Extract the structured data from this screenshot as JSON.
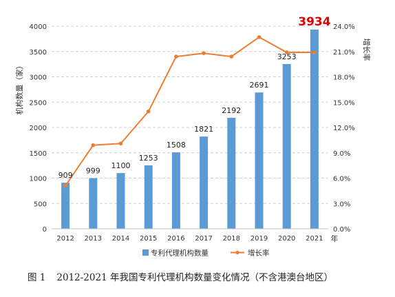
{
  "caption": {
    "figure_number": "图 1",
    "text": "2012-2021 年我国专利代理机构数量变化情况（不含港澳台地区）"
  },
  "chart_data": {
    "type": "bar",
    "categories": [
      "2012",
      "2013",
      "2014",
      "2015",
      "2016",
      "2017",
      "2018",
      "2019",
      "2020",
      "2021"
    ],
    "x_unit": "年",
    "series": [
      {
        "name": "专利代理机构数量",
        "type": "bar",
        "axis": "left",
        "color": "#5b9bd5",
        "values": [
          909,
          999,
          1100,
          1253,
          1508,
          1821,
          2192,
          2691,
          3253,
          3934
        ],
        "labels": [
          "909",
          "999",
          "1100",
          "1253",
          "1508",
          "1821",
          "2192",
          "2691",
          "3253",
          "3934"
        ]
      },
      {
        "name": "增长率",
        "type": "line",
        "axis": "right",
        "color": "#ed7d31",
        "values": [
          5.1,
          9.9,
          10.1,
          13.9,
          20.4,
          20.8,
          20.4,
          22.7,
          20.9,
          20.9
        ]
      }
    ],
    "highlight": {
      "index": 9,
      "color": "#e00000"
    },
    "ylabel": "机构数量（家）",
    "y2label": "增长率",
    "ylim": [
      0,
      4000
    ],
    "y2lim": [
      0,
      24
    ],
    "yticks": [
      "0",
      "500",
      "1000",
      "1500",
      "2000",
      "2500",
      "3000",
      "3500",
      "4000"
    ],
    "y2ticks": [
      "0.0%",
      "3.0%",
      "6.0%",
      "9.0%",
      "12.0%",
      "15.0%",
      "18.0%",
      "21.0%",
      "24.0%"
    ],
    "grid": true,
    "legend": "bottom"
  }
}
